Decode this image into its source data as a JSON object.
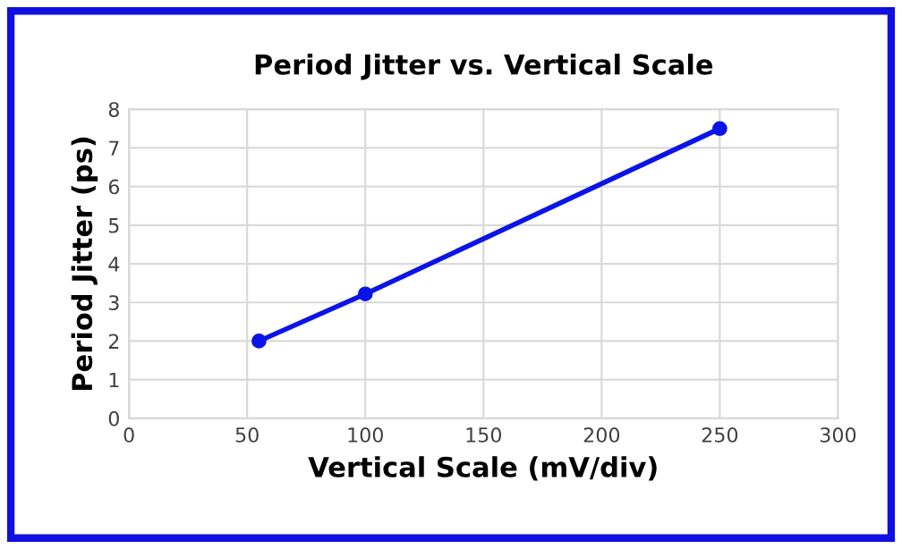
{
  "chart_data": {
    "type": "line",
    "title": "Period Jitter vs. Vertical Scale",
    "xlabel": "Vertical Scale (mV/div)",
    "ylabel": "Period Jitter (ps)",
    "x": [
      55,
      100,
      250
    ],
    "series": [
      {
        "color": "#0a14e6",
        "values": [
          2.0,
          3.22,
          7.5
        ]
      }
    ],
    "xlim": [
      0,
      300
    ],
    "xticks": [
      0,
      50,
      100,
      150,
      200,
      250,
      300
    ],
    "ylim": [
      0,
      8
    ],
    "yticks": [
      0,
      1,
      2,
      3,
      4,
      5,
      6,
      7,
      8
    ],
    "grid": true,
    "marker": "circle",
    "line_style": "solid",
    "legend": false
  }
}
